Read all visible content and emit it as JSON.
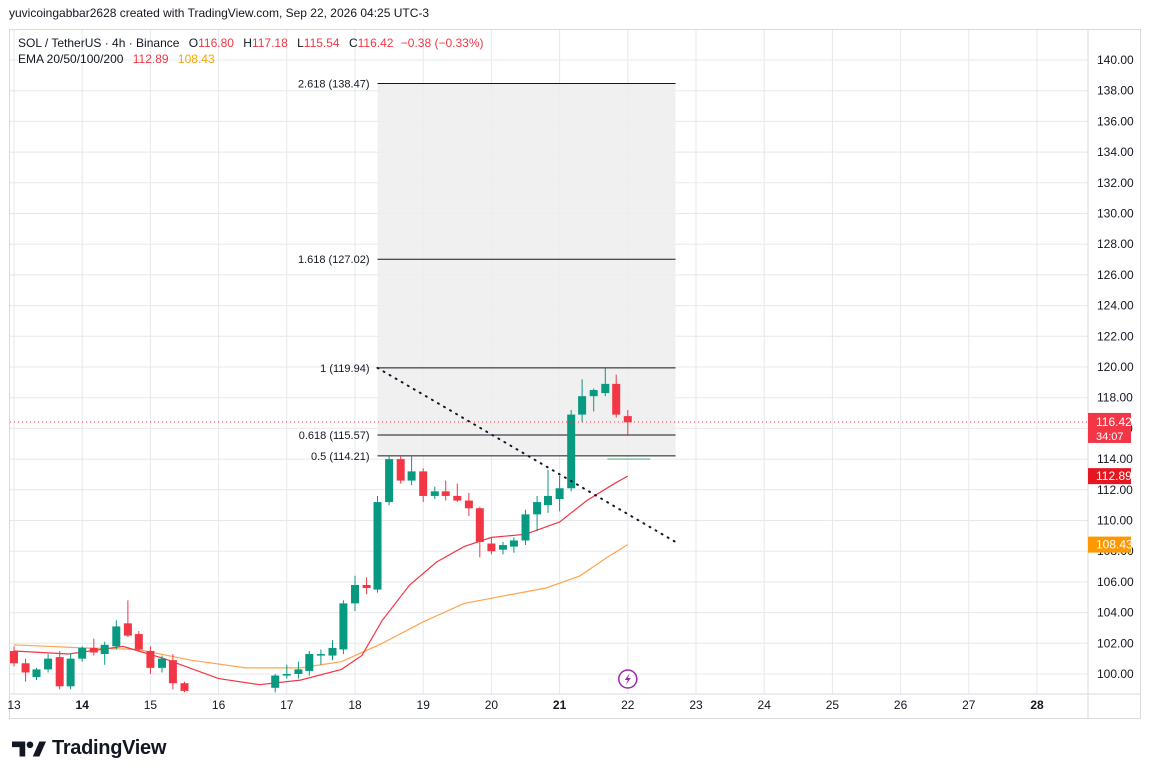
{
  "header": {
    "credit": "yuvicoingabbar2628 created with TradingView.com, Sep 22, 2026 04:25 UTC-3"
  },
  "legend": {
    "symbol": "SOL / TetherUS · 4h · Binance",
    "o_label": "O",
    "o_value": "116.80",
    "h_label": "H",
    "h_value": "117.18",
    "l_label": "L",
    "l_value": "115.54",
    "c_label": "C",
    "c_value": "116.42",
    "change": "−0.38 (−0.33%)",
    "ema_label": "EMA 20/50/100/200",
    "ema20_value": "112.89",
    "ema50_value": "108.43"
  },
  "footer": {
    "brand": "TradingView"
  },
  "colors": {
    "up": "#089981",
    "down": "#f23645",
    "ema20": "#f23645",
    "ema50": "#ffa44f",
    "grid": "#e6e8ec",
    "fib_fill": "#ededed",
    "price_tag": "#f23645",
    "ema50_tag": "#ff9800",
    "ema20_tag": "#e5161f"
  },
  "chart_data": {
    "type": "candlestick",
    "timeframe": "4h",
    "ylim": [
      98.8,
      141.5
    ],
    "y_ticks": [
      "100.00",
      "102.00",
      "104.00",
      "106.00",
      "108.00",
      "110.00",
      "112.00",
      "114.00",
      "116.00",
      "118.00",
      "120.00",
      "122.00",
      "124.00",
      "126.00",
      "128.00",
      "130.00",
      "132.00",
      "134.00",
      "136.00",
      "138.00",
      "140.00"
    ],
    "x_ticks": [
      "13",
      "14",
      "15",
      "16",
      "17",
      "18",
      "19",
      "20",
      "21",
      "22",
      "23",
      "24",
      "25",
      "26",
      "27",
      "28"
    ],
    "x_range": [
      13.0,
      28.8
    ],
    "candles": [
      {
        "t": 13.0,
        "o": 101.5,
        "h": 101.8,
        "l": 100.5,
        "c": 100.7
      },
      {
        "t": 13.17,
        "o": 100.7,
        "h": 101.0,
        "l": 99.5,
        "c": 100.1
      },
      {
        "t": 13.33,
        "o": 99.8,
        "h": 100.4,
        "l": 99.6,
        "c": 100.3
      },
      {
        "t": 13.5,
        "o": 100.3,
        "h": 101.3,
        "l": 100.1,
        "c": 101.0
      },
      {
        "t": 13.67,
        "o": 101.1,
        "h": 101.5,
        "l": 99.0,
        "c": 99.2
      },
      {
        "t": 13.83,
        "o": 99.2,
        "h": 101.3,
        "l": 99.0,
        "c": 101.0
      },
      {
        "t": 14.0,
        "o": 101.0,
        "h": 101.8,
        "l": 100.8,
        "c": 101.7
      },
      {
        "t": 14.17,
        "o": 101.7,
        "h": 102.3,
        "l": 101.2,
        "c": 101.4
      },
      {
        "t": 14.33,
        "o": 101.3,
        "h": 102.1,
        "l": 100.6,
        "c": 101.9
      },
      {
        "t": 14.5,
        "o": 101.8,
        "h": 103.5,
        "l": 101.6,
        "c": 103.1
      },
      {
        "t": 14.67,
        "o": 103.3,
        "h": 104.8,
        "l": 102.4,
        "c": 102.5
      },
      {
        "t": 14.83,
        "o": 102.6,
        "h": 102.8,
        "l": 101.5,
        "c": 101.6
      },
      {
        "t": 15.0,
        "o": 101.5,
        "h": 101.8,
        "l": 100.0,
        "c": 100.4
      },
      {
        "t": 15.17,
        "o": 100.4,
        "h": 101.2,
        "l": 100.1,
        "c": 101.0
      },
      {
        "t": 15.33,
        "o": 100.9,
        "h": 101.3,
        "l": 99.0,
        "c": 99.4
      },
      {
        "t": 15.5,
        "o": 99.4,
        "h": 99.5,
        "l": 98.8,
        "c": 98.9
      },
      {
        "t": 16.83,
        "o": 99.1,
        "h": 100.0,
        "l": 98.8,
        "c": 99.9
      },
      {
        "t": 17.0,
        "o": 99.9,
        "h": 100.6,
        "l": 99.7,
        "c": 100.0
      },
      {
        "t": 17.17,
        "o": 100.0,
        "h": 100.8,
        "l": 99.7,
        "c": 100.3
      },
      {
        "t": 17.33,
        "o": 100.2,
        "h": 101.5,
        "l": 99.9,
        "c": 101.3
      },
      {
        "t": 17.5,
        "o": 101.2,
        "h": 101.6,
        "l": 100.6,
        "c": 101.3
      },
      {
        "t": 17.67,
        "o": 101.2,
        "h": 102.2,
        "l": 100.9,
        "c": 101.7
      },
      {
        "t": 17.83,
        "o": 101.6,
        "h": 104.8,
        "l": 101.3,
        "c": 104.6
      },
      {
        "t": 18.0,
        "o": 104.6,
        "h": 106.4,
        "l": 104.1,
        "c": 105.8
      },
      {
        "t": 18.17,
        "o": 105.8,
        "h": 106.3,
        "l": 105.2,
        "c": 105.6
      },
      {
        "t": 18.33,
        "o": 105.5,
        "h": 111.6,
        "l": 105.3,
        "c": 111.2
      },
      {
        "t": 18.5,
        "o": 111.2,
        "h": 114.2,
        "l": 111.0,
        "c": 114.0
      },
      {
        "t": 18.67,
        "o": 114.0,
        "h": 114.2,
        "l": 112.4,
        "c": 112.6
      },
      {
        "t": 18.83,
        "o": 112.6,
        "h": 114.2,
        "l": 112.3,
        "c": 113.2
      },
      {
        "t": 19.0,
        "o": 113.2,
        "h": 113.4,
        "l": 111.2,
        "c": 111.6
      },
      {
        "t": 19.17,
        "o": 111.6,
        "h": 112.2,
        "l": 111.4,
        "c": 111.9
      },
      {
        "t": 19.33,
        "o": 111.9,
        "h": 112.6,
        "l": 111.3,
        "c": 111.6
      },
      {
        "t": 19.5,
        "o": 111.6,
        "h": 112.4,
        "l": 111.2,
        "c": 111.3
      },
      {
        "t": 19.67,
        "o": 111.3,
        "h": 111.8,
        "l": 110.3,
        "c": 110.8
      },
      {
        "t": 19.83,
        "o": 110.8,
        "h": 110.9,
        "l": 107.6,
        "c": 108.6
      },
      {
        "t": 20.0,
        "o": 108.5,
        "h": 108.9,
        "l": 107.8,
        "c": 108.0
      },
      {
        "t": 20.17,
        "o": 108.1,
        "h": 108.6,
        "l": 107.8,
        "c": 108.4
      },
      {
        "t": 20.33,
        "o": 108.3,
        "h": 108.9,
        "l": 107.9,
        "c": 108.7
      },
      {
        "t": 20.5,
        "o": 108.7,
        "h": 110.7,
        "l": 108.4,
        "c": 110.4
      },
      {
        "t": 20.67,
        "o": 110.4,
        "h": 111.6,
        "l": 109.3,
        "c": 111.2
      },
      {
        "t": 20.83,
        "o": 111.0,
        "h": 113.3,
        "l": 110.5,
        "c": 111.6
      },
      {
        "t": 21.0,
        "o": 111.4,
        "h": 112.9,
        "l": 110.6,
        "c": 112.1
      },
      {
        "t": 21.17,
        "o": 112.1,
        "h": 117.2,
        "l": 111.9,
        "c": 116.9
      },
      {
        "t": 21.33,
        "o": 116.9,
        "h": 119.2,
        "l": 116.4,
        "c": 118.1
      },
      {
        "t": 21.5,
        "o": 118.1,
        "h": 118.6,
        "l": 117.1,
        "c": 118.5
      },
      {
        "t": 21.67,
        "o": 118.3,
        "h": 119.9,
        "l": 118.1,
        "c": 118.9
      },
      {
        "t": 21.83,
        "o": 118.9,
        "h": 119.5,
        "l": 116.7,
        "c": 116.9
      },
      {
        "t": 22.0,
        "o": 116.8,
        "h": 117.2,
        "l": 115.5,
        "c": 116.4
      }
    ],
    "ema20": [
      {
        "t": 13.0,
        "v": 101.5
      },
      {
        "t": 13.8,
        "v": 101.3
      },
      {
        "t": 14.6,
        "v": 101.8
      },
      {
        "t": 15.2,
        "v": 101.0
      },
      {
        "t": 16.0,
        "v": 99.7
      },
      {
        "t": 16.6,
        "v": 99.3
      },
      {
        "t": 17.2,
        "v": 99.6
      },
      {
        "t": 17.8,
        "v": 100.3
      },
      {
        "t": 18.1,
        "v": 101.2
      },
      {
        "t": 18.4,
        "v": 103.5
      },
      {
        "t": 18.8,
        "v": 105.8
      },
      {
        "t": 19.2,
        "v": 107.3
      },
      {
        "t": 19.6,
        "v": 108.3
      },
      {
        "t": 20.0,
        "v": 108.9
      },
      {
        "t": 20.5,
        "v": 109.1
      },
      {
        "t": 21.0,
        "v": 109.9
      },
      {
        "t": 21.4,
        "v": 111.3
      },
      {
        "t": 21.8,
        "v": 112.4
      },
      {
        "t": 22.0,
        "v": 112.89
      }
    ],
    "ema50": [
      {
        "t": 13.0,
        "v": 101.9
      },
      {
        "t": 14.0,
        "v": 101.7
      },
      {
        "t": 14.8,
        "v": 101.6
      },
      {
        "t": 15.6,
        "v": 100.9
      },
      {
        "t": 16.4,
        "v": 100.4
      },
      {
        "t": 17.2,
        "v": 100.4
      },
      {
        "t": 17.8,
        "v": 100.8
      },
      {
        "t": 18.4,
        "v": 102.0
      },
      {
        "t": 19.0,
        "v": 103.4
      },
      {
        "t": 19.6,
        "v": 104.6
      },
      {
        "t": 20.2,
        "v": 105.1
      },
      {
        "t": 20.8,
        "v": 105.6
      },
      {
        "t": 21.3,
        "v": 106.4
      },
      {
        "t": 21.7,
        "v": 107.6
      },
      {
        "t": 22.0,
        "v": 108.43
      }
    ],
    "fib": {
      "x_start": 18.33,
      "x_end": 22.7,
      "levels": [
        {
          "ratio": "2.618",
          "price": 138.47,
          "label": "2.618 (138.47)"
        },
        {
          "ratio": "1.618",
          "price": 127.02,
          "label": "1.618 (127.02)"
        },
        {
          "ratio": "1",
          "price": 119.94,
          "label": "1 (119.94)"
        },
        {
          "ratio": "0.618",
          "price": 115.57,
          "label": "0.618 (115.57)"
        },
        {
          "ratio": "0.5",
          "price": 114.21,
          "label": "0.5 (114.21)"
        }
      ]
    },
    "trendline": {
      "t1": 18.33,
      "v1": 119.94,
      "t2": 22.7,
      "v2": 108.6
    },
    "small_line": {
      "t1": 21.7,
      "t2": 22.33,
      "v": 114.0
    },
    "price_labels": [
      {
        "price": 116.42,
        "text": "116.42",
        "sub": "34:07",
        "kind": "last"
      },
      {
        "price": 112.89,
        "text": "112.89",
        "kind": "ema20"
      },
      {
        "price": 108.43,
        "text": "108.43",
        "kind": "ema50"
      }
    ],
    "current_price": 116.42,
    "event_marker_t": 22.0
  }
}
